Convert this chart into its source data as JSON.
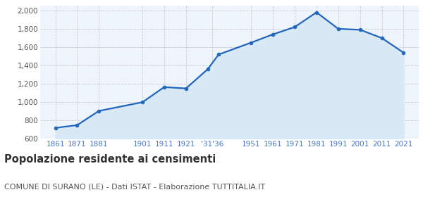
{
  "years": [
    1861,
    1871,
    1881,
    1901,
    1911,
    1921,
    1931,
    1936,
    1951,
    1961,
    1971,
    1981,
    1991,
    2001,
    2011,
    2021
  ],
  "population": [
    720,
    750,
    905,
    1000,
    1165,
    1150,
    1360,
    1520,
    1650,
    1740,
    1820,
    1980,
    1800,
    1790,
    1700,
    1540
  ],
  "x_tick_positions": [
    1861,
    1871,
    1881,
    1901,
    1911,
    1921,
    1933,
    1951,
    1961,
    1971,
    1981,
    1991,
    2001,
    2011,
    2021
  ],
  "x_tick_labels": [
    "1861",
    "1871",
    "1881",
    "1901",
    "1911",
    "1921",
    "'31'36",
    "1951",
    "1961",
    "1971",
    "1981",
    "1991",
    "2001",
    "2011",
    "2021"
  ],
  "line_color": "#2266bb",
  "fill_color": "#d8e8f5",
  "marker_size": 3.5,
  "ylim": [
    600,
    2050
  ],
  "xlim_left": 1854,
  "xlim_right": 2028,
  "yticks": [
    600,
    800,
    1000,
    1200,
    1400,
    1600,
    1800,
    2000
  ],
  "ytick_labels": [
    "600",
    "800",
    "1,000",
    "1,200",
    "1,400",
    "1,600",
    "1,800",
    "2,000"
  ],
  "grid_color": "#cccccc",
  "background_color": "#eef4fb",
  "title": "Popolazione residente ai censimenti",
  "subtitle": "COMUNE DI SURANO (LE) - Dati ISTAT - Elaborazione TUTTITALIA.IT",
  "title_fontsize": 10.5,
  "subtitle_fontsize": 8,
  "ytick_color": "#555555",
  "xtick_color": "#4477cc",
  "tick_fontsize": 7.5
}
